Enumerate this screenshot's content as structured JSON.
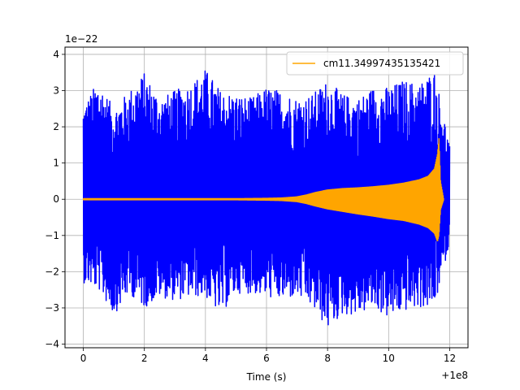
{
  "chart_data": {
    "type": "line",
    "title": "",
    "xlabel": "Time (s)",
    "ylabel": "",
    "x_offset_label": "+1e8",
    "y_scale_label": "1e−22",
    "xlim": [
      -0.6,
      12.6
    ],
    "ylim": [
      -4.1,
      4.2
    ],
    "x_ticks": [
      0,
      2,
      4,
      6,
      8,
      10,
      12
    ],
    "x_tick_labels": [
      "0",
      "2",
      "4",
      "6",
      "8",
      "10",
      "12"
    ],
    "y_ticks": [
      -4,
      -3,
      -2,
      -1,
      0,
      1,
      2,
      3,
      4
    ],
    "y_tick_labels": [
      "−4",
      "−3",
      "−2",
      "−1",
      "0",
      "1",
      "2",
      "3",
      "4"
    ],
    "grid": true,
    "legend": {
      "placement": "upper right"
    },
    "series": [
      {
        "name": "",
        "kind": "noise",
        "color": "#0000ff",
        "x": [
          0,
          0.5,
          1,
          1.5,
          2,
          2.5,
          3,
          3.5,
          4,
          4.5,
          5,
          5.5,
          6,
          6.5,
          7,
          7.5,
          8,
          8.5,
          9,
          9.5,
          10,
          10.5,
          11,
          11.5,
          12
        ],
        "upper": [
          2.6,
          3.3,
          2.5,
          3.0,
          3.5,
          2.8,
          3.0,
          3.2,
          3.6,
          3.0,
          2.9,
          2.8,
          3.1,
          3.0,
          2.8,
          2.9,
          3.3,
          2.9,
          2.8,
          3.1,
          3.1,
          3.3,
          3.2,
          3.6,
          1.5
        ],
        "lower": [
          -2.3,
          -2.5,
          -3.2,
          -2.6,
          -3.0,
          -2.7,
          -2.8,
          -2.7,
          -2.7,
          -3.2,
          -2.6,
          -2.6,
          -2.7,
          -2.8,
          -2.7,
          -3.0,
          -3.6,
          -3.2,
          -3.2,
          -3.0,
          -3.3,
          -3.1,
          -3.0,
          -3.0,
          -1.2
        ]
      },
      {
        "name": "cm11.34997435135421",
        "kind": "chirp",
        "color": "#ffa500",
        "x": [
          0,
          1,
          2,
          3,
          4,
          5,
          6,
          6.5,
          7,
          7.3,
          7.6,
          8,
          8.5,
          9,
          9.5,
          10,
          10.5,
          11,
          11.3,
          11.5,
          11.6,
          11.65,
          11.7,
          11.8
        ],
        "upper": [
          0.03,
          0.03,
          0.03,
          0.03,
          0.03,
          0.03,
          0.04,
          0.05,
          0.08,
          0.13,
          0.2,
          0.27,
          0.31,
          0.33,
          0.36,
          0.4,
          0.46,
          0.55,
          0.65,
          0.85,
          1.25,
          1.7,
          0.5,
          0.03
        ],
        "lower": [
          -0.03,
          -0.03,
          -0.03,
          -0.03,
          -0.03,
          -0.03,
          -0.04,
          -0.05,
          -0.08,
          -0.13,
          -0.2,
          -0.28,
          -0.35,
          -0.42,
          -0.48,
          -0.55,
          -0.6,
          -0.7,
          -0.8,
          -0.95,
          -1.18,
          -1.0,
          -0.3,
          -0.03
        ]
      }
    ]
  }
}
